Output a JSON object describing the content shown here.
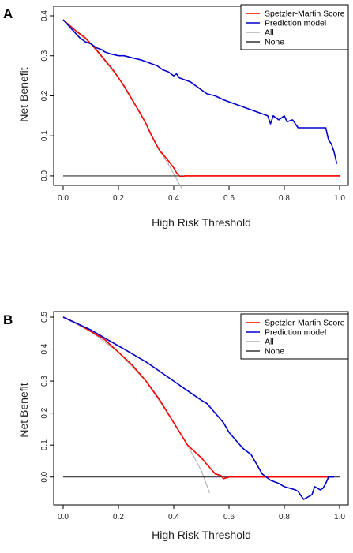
{
  "chart_data": [
    {
      "panel": "A",
      "type": "line",
      "xlabel": "High Risk Threshold",
      "ylabel": "Net Benefit",
      "xlim": [
        0,
        1
      ],
      "ylim": [
        -0.01,
        0.4
      ],
      "xticks": [
        "0.0",
        "0.2",
        "0.4",
        "0.6",
        "0.8",
        "1.0"
      ],
      "yticks": [
        "0.0",
        "0.1",
        "0.2",
        "0.3",
        "0.4"
      ],
      "legend_position": "top-right",
      "series": [
        {
          "name": "Spetzler-Martin Score",
          "color": "#ff0000",
          "x": [
            0,
            0.02,
            0.05,
            0.08,
            0.1,
            0.12,
            0.15,
            0.18,
            0.2,
            0.22,
            0.25,
            0.28,
            0.3,
            0.32,
            0.35,
            0.36,
            0.38,
            0.4,
            0.41,
            0.42,
            0.43,
            0.44,
            0.5,
            0.6,
            0.7,
            0.8,
            0.9,
            1.0
          ],
          "y": [
            0.39,
            0.378,
            0.36,
            0.345,
            0.33,
            0.315,
            0.29,
            0.265,
            0.245,
            0.225,
            0.19,
            0.155,
            0.13,
            0.1,
            0.062,
            0.055,
            0.038,
            0.02,
            0.008,
            0.0,
            -0.003,
            0.0,
            0,
            0,
            0,
            0,
            0,
            0
          ]
        },
        {
          "name": "Prediction model",
          "color": "#0000cc",
          "x": [
            0,
            0.02,
            0.04,
            0.06,
            0.08,
            0.1,
            0.12,
            0.14,
            0.15,
            0.17,
            0.2,
            0.22,
            0.25,
            0.28,
            0.3,
            0.32,
            0.34,
            0.36,
            0.38,
            0.4,
            0.41,
            0.42,
            0.44,
            0.46,
            0.48,
            0.5,
            0.52,
            0.55,
            0.58,
            0.6,
            0.62,
            0.64,
            0.66,
            0.68,
            0.7,
            0.72,
            0.74,
            0.75,
            0.76,
            0.78,
            0.8,
            0.81,
            0.83,
            0.85,
            0.87,
            0.9,
            0.93,
            0.95,
            0.96,
            0.97,
            0.98,
            0.99
          ],
          "y": [
            0.39,
            0.375,
            0.36,
            0.345,
            0.335,
            0.33,
            0.32,
            0.315,
            0.31,
            0.305,
            0.3,
            0.3,
            0.295,
            0.29,
            0.285,
            0.28,
            0.275,
            0.265,
            0.26,
            0.25,
            0.255,
            0.245,
            0.24,
            0.235,
            0.225,
            0.215,
            0.205,
            0.2,
            0.19,
            0.185,
            0.18,
            0.175,
            0.17,
            0.165,
            0.16,
            0.155,
            0.15,
            0.13,
            0.15,
            0.14,
            0.15,
            0.135,
            0.14,
            0.12,
            0.12,
            0.12,
            0.12,
            0.12,
            0.09,
            0.08,
            0.06,
            0.03
          ]
        },
        {
          "name": "All",
          "color": "#b0b0b0",
          "x": [
            0,
            0.1,
            0.2,
            0.3,
            0.35,
            0.38,
            0.4,
            0.42,
            0.43
          ],
          "y": [
            0.39,
            0.33,
            0.245,
            0.13,
            0.062,
            0.03,
            0.005,
            -0.02,
            -0.032
          ]
        },
        {
          "name": "None",
          "color": "#333333",
          "x": [
            0,
            1
          ],
          "y": [
            0,
            0
          ]
        }
      ]
    },
    {
      "panel": "B",
      "type": "line",
      "xlabel": "High Risk Threshold",
      "ylabel": "Net Benefit",
      "xlim": [
        0,
        1
      ],
      "ylim": [
        -0.05,
        0.5
      ],
      "xticks": [
        "0.0",
        "0.2",
        "0.4",
        "0.6",
        "0.8",
        "1.0"
      ],
      "yticks": [
        "0.0",
        "0.1",
        "0.2",
        "0.3",
        "0.4",
        "0.5"
      ],
      "legend_position": "top-right",
      "series": [
        {
          "name": "Spetzler-Martin Score",
          "color": "#ff0000",
          "x": [
            0,
            0.05,
            0.1,
            0.15,
            0.2,
            0.25,
            0.3,
            0.35,
            0.4,
            0.45,
            0.5,
            0.53,
            0.55,
            0.57,
            0.58,
            0.6,
            0.65,
            0.7,
            0.8,
            0.9,
            0.96
          ],
          "y": [
            0.5,
            0.48,
            0.455,
            0.43,
            0.39,
            0.35,
            0.3,
            0.24,
            0.17,
            0.1,
            0.06,
            0.03,
            0.01,
            0.005,
            -0.005,
            0.0,
            0,
            0,
            0,
            0,
            0
          ]
        },
        {
          "name": "Prediction model",
          "color": "#0000cc",
          "x": [
            0,
            0.05,
            0.1,
            0.15,
            0.2,
            0.25,
            0.3,
            0.35,
            0.4,
            0.45,
            0.5,
            0.52,
            0.55,
            0.58,
            0.6,
            0.62,
            0.65,
            0.68,
            0.7,
            0.72,
            0.75,
            0.78,
            0.8,
            0.82,
            0.84,
            0.85,
            0.87,
            0.89,
            0.9,
            0.91,
            0.93,
            0.94,
            0.95,
            0.96,
            0.98
          ],
          "y": [
            0.5,
            0.48,
            0.46,
            0.435,
            0.41,
            0.385,
            0.36,
            0.33,
            0.3,
            0.27,
            0.24,
            0.23,
            0.2,
            0.17,
            0.14,
            0.12,
            0.09,
            0.07,
            0.04,
            0.01,
            -0.01,
            -0.02,
            -0.03,
            -0.035,
            -0.04,
            -0.045,
            -0.07,
            -0.06,
            -0.055,
            -0.03,
            -0.04,
            -0.035,
            -0.02,
            0.0,
            0.0
          ]
        },
        {
          "name": "All",
          "color": "#b0b0b0",
          "x": [
            0,
            0.1,
            0.2,
            0.3,
            0.4,
            0.45,
            0.5,
            0.53
          ],
          "y": [
            0.5,
            0.455,
            0.39,
            0.3,
            0.17,
            0.1,
            0.02,
            -0.05
          ]
        },
        {
          "name": "None",
          "color": "#333333",
          "x": [
            0,
            1
          ],
          "y": [
            0,
            0
          ]
        }
      ]
    }
  ]
}
